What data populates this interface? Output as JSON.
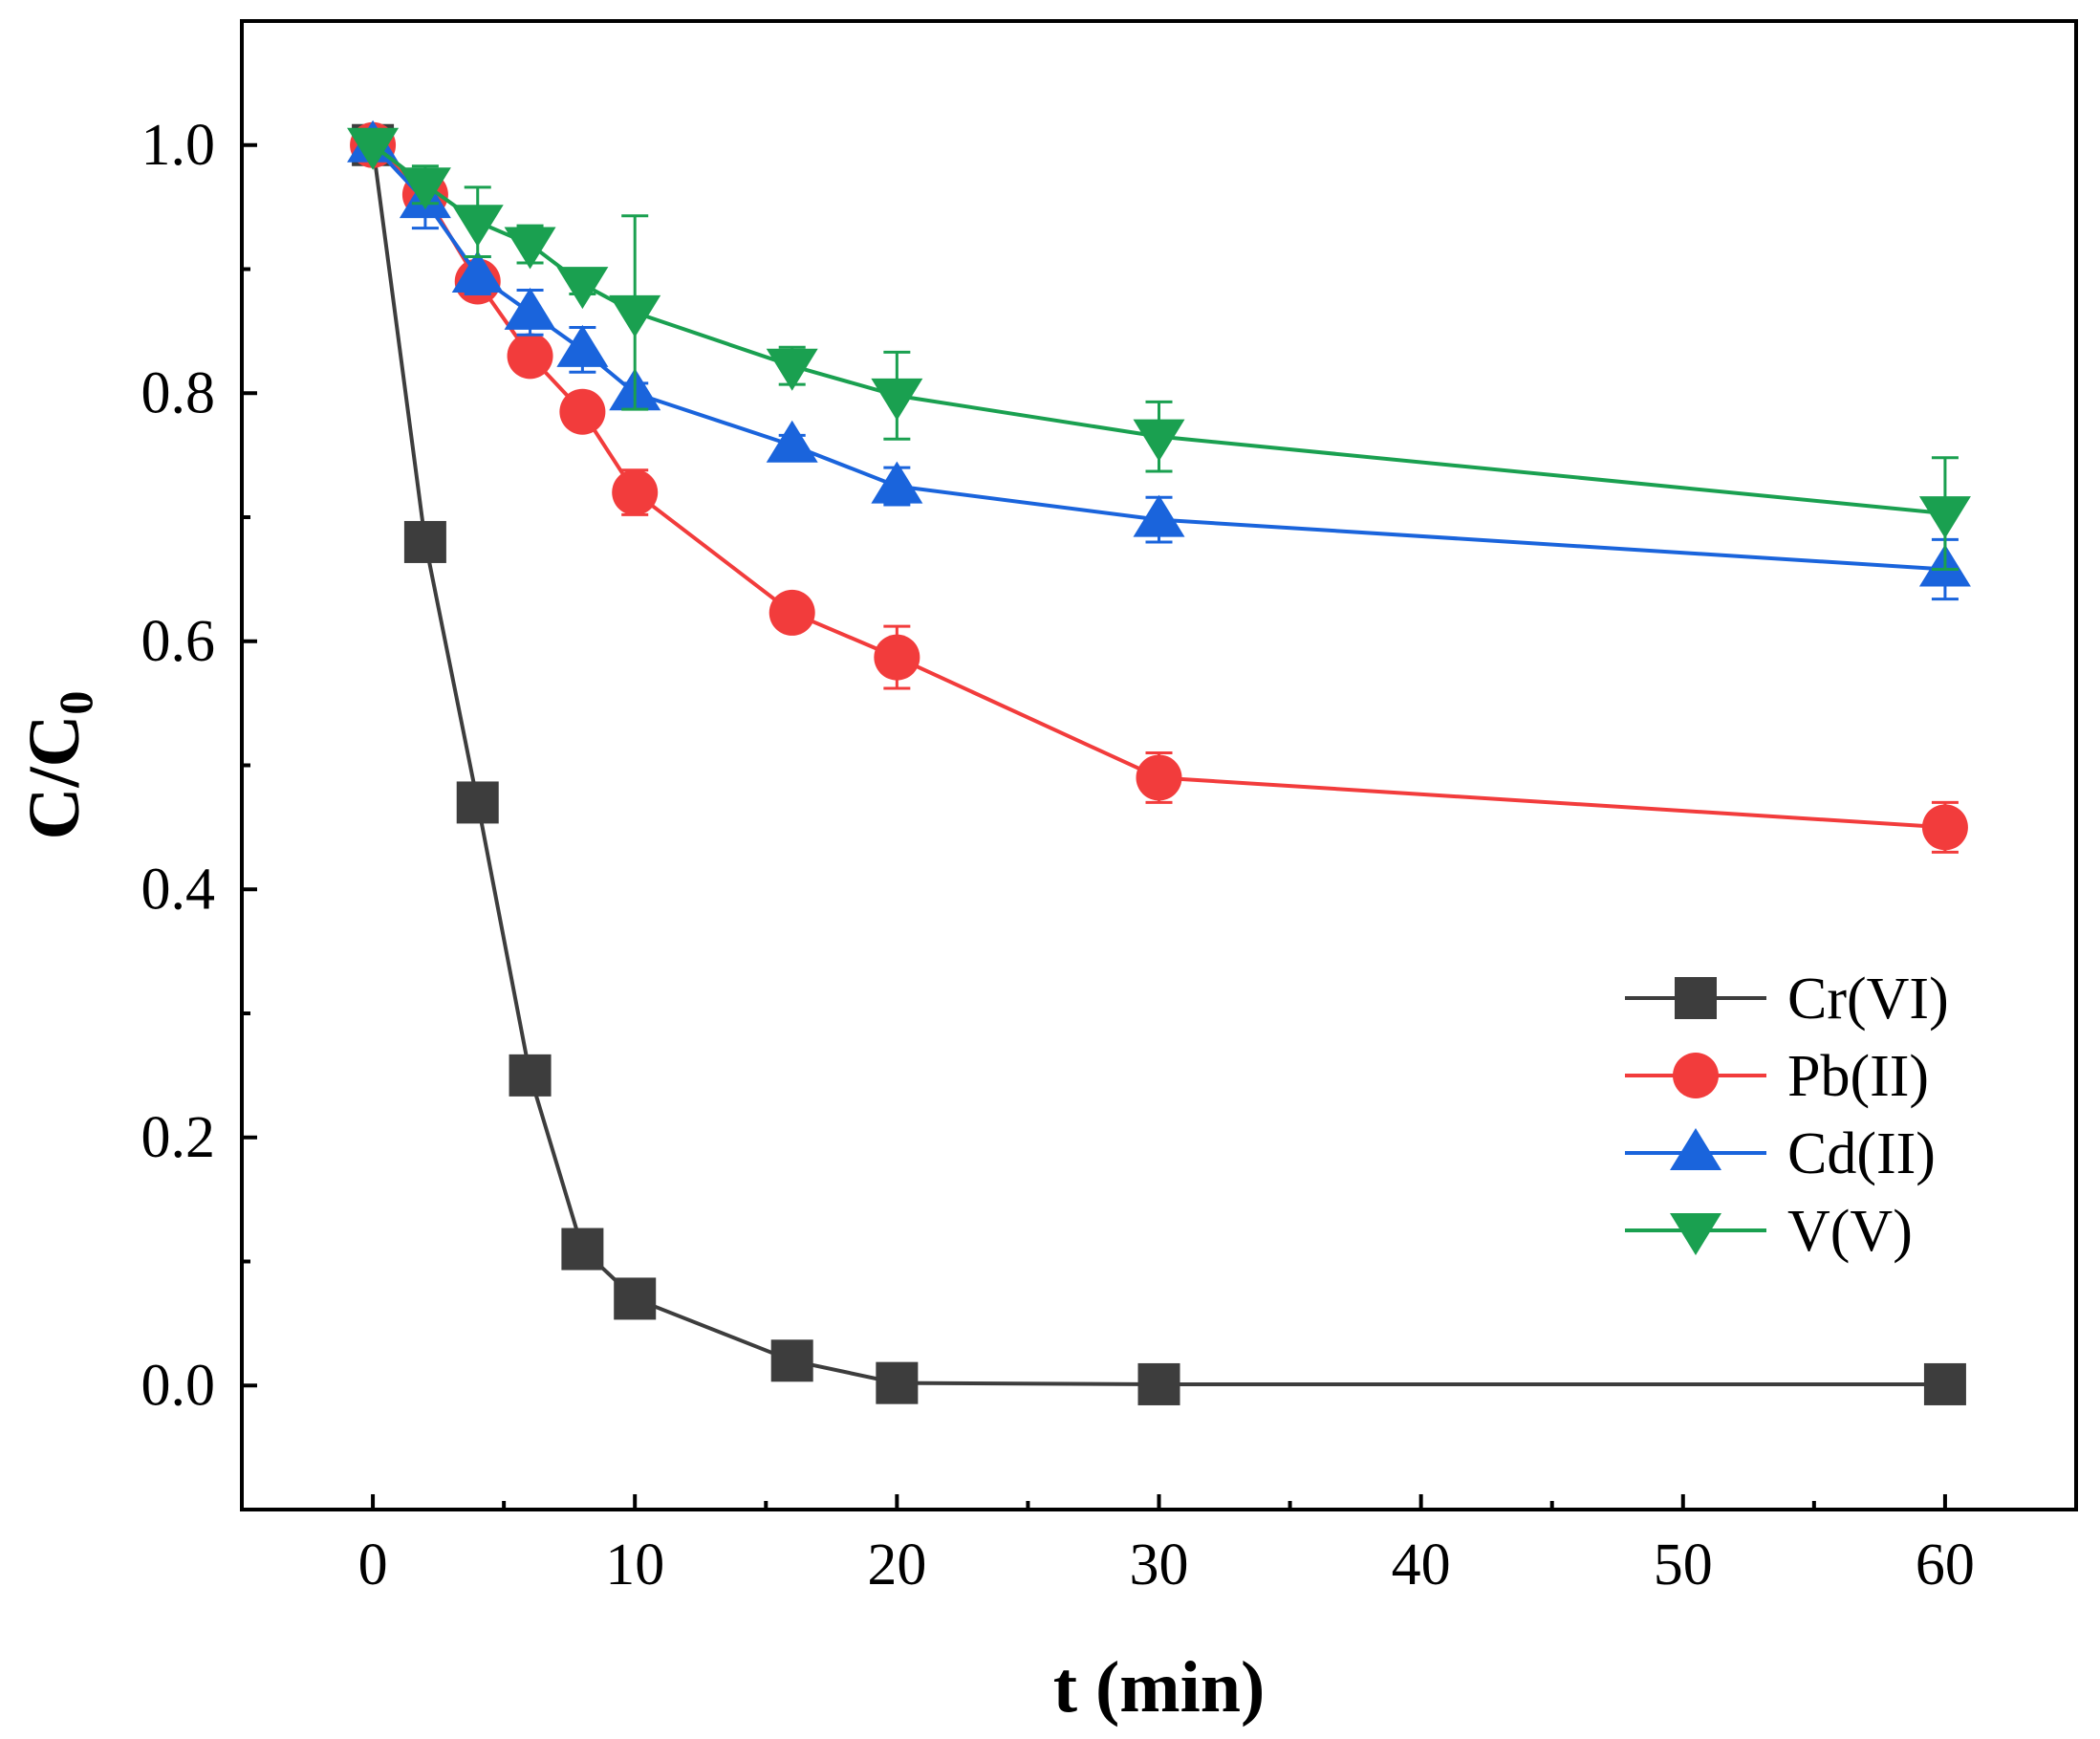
{
  "chart_data": {
    "type": "line",
    "title": "",
    "xlabel": "t (min)",
    "ylabel_main": "C/C",
    "ylabel_sub": "0",
    "xlim": [
      -5,
      65
    ],
    "ylim": [
      -0.1,
      1.1
    ],
    "x_ticks": [
      0,
      10,
      20,
      30,
      40,
      50,
      60
    ],
    "x_tick_labels": [
      "0",
      "10",
      "20",
      "30",
      "40",
      "50",
      "60"
    ],
    "y_ticks": [
      0.0,
      0.2,
      0.4,
      0.6,
      0.8,
      1.0
    ],
    "y_tick_labels": [
      "0.0",
      "0.2",
      "0.4",
      "0.6",
      "0.8",
      "1.0"
    ],
    "x_minor_ticks": [
      5,
      15,
      25,
      35,
      45,
      55
    ],
    "y_minor_ticks": [
      0.1,
      0.3,
      0.5,
      0.7,
      0.9
    ],
    "grid": false,
    "legend_position": "lower-right",
    "series": [
      {
        "name": "Cr(VI)",
        "color": "#3d3d3d",
        "marker": "square",
        "x": [
          0,
          2,
          4,
          6,
          8,
          10,
          16,
          20,
          30,
          60
        ],
        "y": [
          1.0,
          0.68,
          0.47,
          0.25,
          0.11,
          0.07,
          0.02,
          0.002,
          0.001,
          0.001
        ],
        "err": [
          0,
          0,
          0,
          0,
          0,
          0,
          0,
          0,
          0,
          0
        ]
      },
      {
        "name": "Pb(II)",
        "color": "#f23c3c",
        "marker": "circle",
        "x": [
          0,
          2,
          4,
          6,
          8,
          10,
          16,
          20,
          30,
          60
        ],
        "y": [
          1.0,
          0.96,
          0.89,
          0.83,
          0.785,
          0.72,
          0.623,
          0.587,
          0.49,
          0.45
        ],
        "err": [
          0,
          0.01,
          0.01,
          0.01,
          0.008,
          0.018,
          0.008,
          0.025,
          0.02,
          0.02
        ]
      },
      {
        "name": "Cd(II)",
        "color": "#1a64dc",
        "marker": "triangle-up",
        "x": [
          0,
          2,
          4,
          6,
          8,
          10,
          16,
          20,
          30,
          60
        ],
        "y": [
          1.0,
          0.955,
          0.895,
          0.865,
          0.835,
          0.8,
          0.758,
          0.725,
          0.698,
          0.658
        ],
        "err": [
          0,
          0.022,
          0.015,
          0.018,
          0.018,
          0.008,
          0.008,
          0.015,
          0.018,
          0.024
        ]
      },
      {
        "name": "V(V)",
        "color": "#1aa050",
        "marker": "triangle-down",
        "x": [
          0,
          2,
          4,
          6,
          8,
          10,
          16,
          20,
          30,
          60
        ],
        "y": [
          1.0,
          0.968,
          0.938,
          0.92,
          0.888,
          0.865,
          0.822,
          0.798,
          0.765,
          0.703
        ],
        "err": [
          0,
          0.015,
          0.028,
          0.015,
          0.008,
          0.078,
          0.015,
          0.035,
          0.028,
          0.045
        ]
      }
    ]
  }
}
